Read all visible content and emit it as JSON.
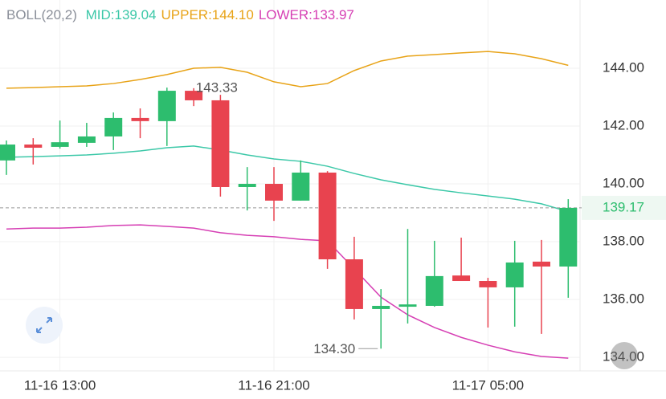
{
  "chart_data": {
    "type": "candlestick",
    "indicator": "BOLL(20,2)",
    "categories": [
      null,
      null,
      "11-16 13:00",
      null,
      null,
      null,
      null,
      null,
      null,
      null,
      "11-16 21:00",
      null,
      null,
      null,
      null,
      null,
      null,
      null,
      "11-17 05:00",
      null,
      null,
      null
    ],
    "open": [
      140.81,
      141.36,
      141.28,
      141.42,
      141.64,
      142.28,
      142.17,
      143.22,
      142.89,
      139.89,
      140.0,
      139.42,
      140.39,
      137.39,
      135.67,
      135.75,
      135.78,
      136.83,
      136.64,
      136.42,
      137.31,
      137.14
    ],
    "high": [
      141.5,
      141.58,
      142.19,
      142.11,
      142.47,
      142.61,
      143.33,
      143.31,
      143.08,
      140.58,
      140.58,
      140.81,
      140.44,
      138.17,
      136.36,
      138.44,
      138.03,
      138.14,
      136.75,
      138.03,
      138.06,
      139.47
    ],
    "low": [
      140.31,
      140.67,
      141.22,
      141.28,
      141.17,
      141.58,
      141.31,
      142.69,
      139.56,
      139.08,
      138.72,
      139.42,
      137.06,
      135.31,
      134.3,
      135.17,
      135.75,
      136.64,
      135.03,
      135.06,
      134.81,
      136.06
    ],
    "close": [
      141.36,
      141.25,
      141.44,
      141.64,
      142.28,
      142.17,
      143.22,
      142.89,
      139.89,
      140.0,
      139.42,
      140.39,
      137.39,
      135.67,
      135.78,
      135.83,
      136.81,
      136.64,
      136.42,
      137.28,
      137.14,
      139.17
    ],
    "up_color": "#2dbd6e",
    "down_color": "#e8434f",
    "series": [
      {
        "name": "MID:139.04",
        "color": "#3cc8a8",
        "values": [
          140.92,
          140.94,
          140.97,
          141.0,
          141.06,
          141.14,
          141.25,
          141.31,
          141.17,
          141.0,
          140.86,
          140.78,
          140.61,
          140.36,
          140.14,
          139.97,
          139.81,
          139.69,
          139.58,
          139.47,
          139.31,
          139.04
        ]
      },
      {
        "name": "UPPER:144.10",
        "color": "#e8a317",
        "values": [
          143.31,
          143.33,
          143.36,
          143.39,
          143.47,
          143.61,
          143.78,
          144.0,
          144.03,
          143.86,
          143.53,
          143.36,
          143.47,
          143.92,
          144.25,
          144.42,
          144.47,
          144.53,
          144.58,
          144.5,
          144.33,
          144.1
        ]
      },
      {
        "name": "LOWER:133.97",
        "color": "#d63fb4",
        "values": [
          138.44,
          138.47,
          138.47,
          138.5,
          138.56,
          138.58,
          138.53,
          138.47,
          138.31,
          138.22,
          138.17,
          138.08,
          138.03,
          137.06,
          136.08,
          135.47,
          135.03,
          134.69,
          134.42,
          134.19,
          134.03,
          133.97
        ]
      }
    ],
    "max_label": "143.33",
    "min_label": "134.30",
    "last_label": "139.17",
    "ylim": [
      133.53,
      146.36
    ],
    "yticks": [
      {
        "value": 134,
        "label": "134.00"
      },
      {
        "value": 136,
        "label": "136.00"
      },
      {
        "value": 138,
        "label": "138.00"
      },
      {
        "value": 140,
        "label": "140.00"
      },
      {
        "value": 142,
        "label": "142.00"
      },
      {
        "value": 144,
        "label": "144.00"
      }
    ],
    "grid": true
  }
}
